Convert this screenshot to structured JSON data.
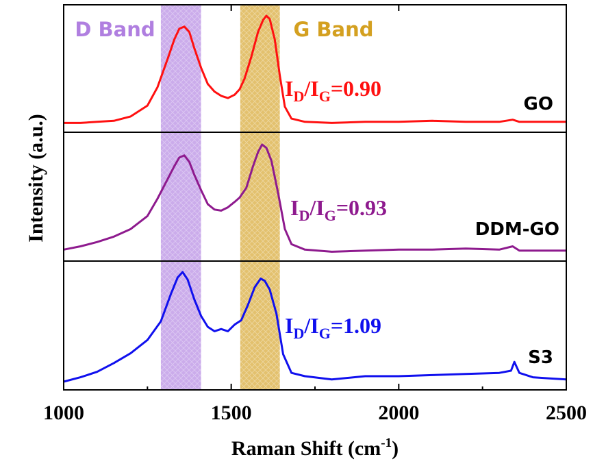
{
  "chart_data": {
    "type": "line",
    "xlabel": "Raman Shift (cm",
    "xlabel_sup": "-1",
    "xlabel_close": ")",
    "ylabel": "Intensity (a.u.)",
    "xlim": [
      1000,
      2500
    ],
    "xticks": [
      "1000",
      "1500",
      "2000",
      "2500"
    ],
    "xtick_values": [
      1000,
      1500,
      2000,
      2500
    ],
    "bands": [
      {
        "name": "D Band",
        "range": [
          1290,
          1410
        ],
        "color": "#b07fe0"
      },
      {
        "name": "G Band",
        "range": [
          1527,
          1645
        ],
        "color": "#d4a020"
      }
    ],
    "series": [
      {
        "name": "GO",
        "color": "#ff1010",
        "ratio_prefix": "I",
        "ratio_sub1": "D",
        "ratio_mid": "/I",
        "ratio_sub2": "G",
        "ratio_value": "=0.90",
        "intensity": [
          [
            1000,
            0.01
          ],
          [
            1050,
            0.01
          ],
          [
            1100,
            0.02
          ],
          [
            1150,
            0.03
          ],
          [
            1200,
            0.07
          ],
          [
            1250,
            0.17
          ],
          [
            1280,
            0.34
          ],
          [
            1310,
            0.6
          ],
          [
            1330,
            0.78
          ],
          [
            1345,
            0.88
          ],
          [
            1360,
            0.9
          ],
          [
            1375,
            0.85
          ],
          [
            1390,
            0.7
          ],
          [
            1410,
            0.52
          ],
          [
            1430,
            0.37
          ],
          [
            1450,
            0.3
          ],
          [
            1470,
            0.26
          ],
          [
            1490,
            0.24
          ],
          [
            1510,
            0.27
          ],
          [
            1525,
            0.32
          ],
          [
            1540,
            0.42
          ],
          [
            1560,
            0.62
          ],
          [
            1580,
            0.85
          ],
          [
            1595,
            0.96
          ],
          [
            1605,
            1.0
          ],
          [
            1615,
            0.97
          ],
          [
            1630,
            0.78
          ],
          [
            1645,
            0.45
          ],
          [
            1660,
            0.16
          ],
          [
            1680,
            0.05
          ],
          [
            1720,
            0.02
          ],
          [
            1800,
            0.01
          ],
          [
            1900,
            0.02
          ],
          [
            2000,
            0.02
          ],
          [
            2100,
            0.03
          ],
          [
            2200,
            0.02
          ],
          [
            2300,
            0.02
          ],
          [
            2340,
            0.04
          ],
          [
            2360,
            0.02
          ],
          [
            2400,
            0.02
          ],
          [
            2500,
            0.02
          ]
        ]
      },
      {
        "name": "DDM-GO",
        "color": "#8e1a8e",
        "ratio_prefix": "I",
        "ratio_sub1": "D",
        "ratio_mid": "/I",
        "ratio_sub2": "G",
        "ratio_value": "=0.93",
        "intensity": [
          [
            1000,
            0.03
          ],
          [
            1050,
            0.06
          ],
          [
            1100,
            0.1
          ],
          [
            1150,
            0.15
          ],
          [
            1200,
            0.22
          ],
          [
            1250,
            0.34
          ],
          [
            1280,
            0.5
          ],
          [
            1310,
            0.68
          ],
          [
            1330,
            0.8
          ],
          [
            1345,
            0.88
          ],
          [
            1360,
            0.9
          ],
          [
            1375,
            0.84
          ],
          [
            1390,
            0.72
          ],
          [
            1410,
            0.58
          ],
          [
            1430,
            0.45
          ],
          [
            1450,
            0.4
          ],
          [
            1470,
            0.39
          ],
          [
            1490,
            0.42
          ],
          [
            1510,
            0.47
          ],
          [
            1525,
            0.51
          ],
          [
            1545,
            0.6
          ],
          [
            1565,
            0.8
          ],
          [
            1580,
            0.93
          ],
          [
            1592,
            1.0
          ],
          [
            1605,
            0.97
          ],
          [
            1620,
            0.85
          ],
          [
            1640,
            0.55
          ],
          [
            1660,
            0.22
          ],
          [
            1680,
            0.08
          ],
          [
            1720,
            0.03
          ],
          [
            1800,
            0.01
          ],
          [
            1900,
            0.02
          ],
          [
            2000,
            0.03
          ],
          [
            2100,
            0.03
          ],
          [
            2200,
            0.04
          ],
          [
            2300,
            0.03
          ],
          [
            2340,
            0.06
          ],
          [
            2360,
            0.02
          ],
          [
            2400,
            0.02
          ],
          [
            2500,
            0.02
          ]
        ]
      },
      {
        "name": "S3",
        "color": "#1010ee",
        "ratio_prefix": "I",
        "ratio_sub1": "D",
        "ratio_mid": "/I",
        "ratio_sub2": "G",
        "ratio_value": "=1.09",
        "intensity": [
          [
            1000,
            0.0
          ],
          [
            1050,
            0.04
          ],
          [
            1100,
            0.09
          ],
          [
            1150,
            0.17
          ],
          [
            1200,
            0.26
          ],
          [
            1250,
            0.38
          ],
          [
            1290,
            0.55
          ],
          [
            1320,
            0.8
          ],
          [
            1340,
            0.95
          ],
          [
            1355,
            1.0
          ],
          [
            1370,
            0.93
          ],
          [
            1390,
            0.75
          ],
          [
            1410,
            0.6
          ],
          [
            1430,
            0.5
          ],
          [
            1450,
            0.46
          ],
          [
            1470,
            0.48
          ],
          [
            1490,
            0.46
          ],
          [
            1510,
            0.52
          ],
          [
            1530,
            0.56
          ],
          [
            1550,
            0.7
          ],
          [
            1570,
            0.86
          ],
          [
            1588,
            0.94
          ],
          [
            1600,
            0.92
          ],
          [
            1615,
            0.84
          ],
          [
            1635,
            0.62
          ],
          [
            1655,
            0.25
          ],
          [
            1680,
            0.08
          ],
          [
            1720,
            0.05
          ],
          [
            1800,
            0.02
          ],
          [
            1900,
            0.05
          ],
          [
            2000,
            0.05
          ],
          [
            2100,
            0.06
          ],
          [
            2200,
            0.07
          ],
          [
            2300,
            0.08
          ],
          [
            2335,
            0.1
          ],
          [
            2345,
            0.18
          ],
          [
            2360,
            0.08
          ],
          [
            2400,
            0.04
          ],
          [
            2450,
            0.03
          ],
          [
            2500,
            0.02
          ]
        ]
      }
    ]
  }
}
